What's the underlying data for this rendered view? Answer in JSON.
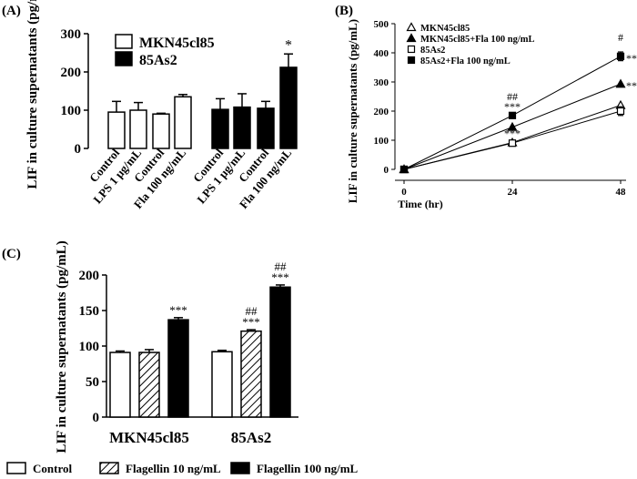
{
  "chart_data": [
    {
      "panel_label": "(A)",
      "type": "bar",
      "ylabel": "LIF in culture supernatants (pg/mL)",
      "ylim": [
        0,
        300
      ],
      "yticks": [
        0,
        100,
        200,
        300
      ],
      "legend": [
        {
          "name": "MKN45cl85",
          "color": "#ffffff"
        },
        {
          "name": "85As2",
          "color": "#000000"
        }
      ],
      "categories": [
        "Control",
        "LPS 1 μg/mL",
        "Control",
        "Fla 100 ng/mL",
        "Control",
        "LPS 1 μg/mL",
        "Control",
        "Fla 100 ng/mL"
      ],
      "values": [
        95,
        100,
        90,
        135,
        102,
        108,
        105,
        212
      ],
      "errors": [
        28,
        20,
        2,
        6,
        28,
        35,
        18,
        35
      ],
      "groups": [
        "MKN45cl85",
        "MKN45cl85",
        "MKN45cl85",
        "MKN45cl85",
        "85As2",
        "85As2",
        "85As2",
        "85As2"
      ],
      "annotations": [
        "",
        "",
        "",
        "",
        "",
        "",
        "",
        "*"
      ]
    },
    {
      "panel_label": "(B)",
      "type": "line",
      "xlabel": "Time (hr)",
      "ylabel": "LIF in culture supernatants (pg/mL)",
      "xlim": [
        0,
        48
      ],
      "ylim": [
        0,
        500
      ],
      "xticks": [
        0,
        24,
        48
      ],
      "yticks": [
        0,
        100,
        200,
        300,
        400,
        500
      ],
      "series": [
        {
          "name": "MKN45cl85",
          "marker": "open-triangle",
          "x": [
            0,
            24,
            48
          ],
          "values": [
            0,
            92,
            220
          ]
        },
        {
          "name": "MKN45cl85+Fla 100 ng/mL",
          "marker": "filled-triangle",
          "x": [
            0,
            24,
            48
          ],
          "values": [
            0,
            145,
            293
          ]
        },
        {
          "name": "85As2",
          "marker": "open-square",
          "x": [
            0,
            24,
            48
          ],
          "values": [
            0,
            90,
            200
          ],
          "errors": [
            0,
            5,
            15
          ]
        },
        {
          "name": "85As2+Fla 100 ng/mL",
          "marker": "filled-square",
          "x": [
            0,
            24,
            48
          ],
          "values": [
            0,
            185,
            388
          ],
          "errors": [
            0,
            6,
            15
          ]
        }
      ],
      "annotations": [
        {
          "x": 24,
          "y": 185,
          "text": "***",
          "line": 1
        },
        {
          "x": 24,
          "y": 185,
          "text": "##",
          "line": 2
        },
        {
          "x": 24,
          "y": 92,
          "text": "***",
          "line": 1
        },
        {
          "x": 48,
          "y": 388,
          "text": "#",
          "line": 2
        },
        {
          "x": 48,
          "y": 388,
          "text": "**",
          "side": "right"
        },
        {
          "x": 48,
          "y": 293,
          "text": "**",
          "side": "right"
        }
      ]
    },
    {
      "panel_label": "(C)",
      "type": "bar",
      "ylabel": "LIF in culture supernatants (pg/mL)",
      "ylim": [
        0,
        200
      ],
      "yticks": [
        0,
        50,
        100,
        150,
        200
      ],
      "categories": [
        "MKN45cl85",
        "85As2"
      ],
      "series": [
        {
          "name": "Control",
          "fill": "white",
          "values": [
            91,
            92
          ],
          "errors": [
            2,
            2
          ]
        },
        {
          "name": "Flagellin 10 ng/mL",
          "fill": "hatch",
          "values": [
            91,
            121
          ],
          "errors": [
            4,
            2
          ]
        },
        {
          "name": "Flagellin 100 ng/mL",
          "fill": "black",
          "values": [
            137,
            183
          ],
          "errors": [
            3,
            3
          ]
        }
      ],
      "annotations": [
        {
          "category": "MKN45cl85",
          "series": "Flagellin 100 ng/mL",
          "lines": [
            "***"
          ]
        },
        {
          "category": "85As2",
          "series": "Flagellin 10 ng/mL",
          "lines": [
            "##",
            "***"
          ]
        },
        {
          "category": "85As2",
          "series": "Flagellin 100 ng/mL",
          "lines": [
            "##",
            "***"
          ]
        }
      ]
    }
  ]
}
